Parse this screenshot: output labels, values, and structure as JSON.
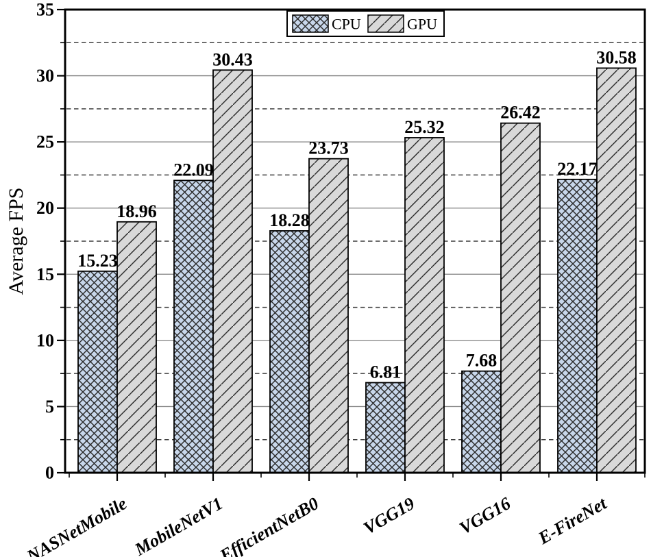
{
  "chart_data": {
    "type": "bar",
    "title": "",
    "categories": [
      "NASNetMobile",
      "MobileNetV1",
      "EfficientNetB0",
      "VGG19",
      "VGG16",
      "E-FireNet"
    ],
    "series": [
      {
        "name": "CPU",
        "values": [
          15.23,
          22.09,
          18.28,
          6.81,
          7.68,
          22.17
        ],
        "fill": "#c8d7eb",
        "hatch": "crosshatch"
      },
      {
        "name": "GPU",
        "values": [
          18.96,
          30.43,
          23.73,
          25.32,
          26.42,
          30.58
        ],
        "fill": "#d9d9d9",
        "hatch": "diagonal"
      }
    ],
    "xlabel": "",
    "ylabel": "Average FPS",
    "ylim": [
      0,
      35
    ],
    "ytick_step": 5,
    "yminor_step": 2.5,
    "yticks": [
      "0",
      "5",
      "10",
      "15",
      "20",
      "25",
      "30",
      "35"
    ],
    "bar_labels": true,
    "grid": {
      "major_style": "solid",
      "minor_style": "dashed",
      "major_on": true,
      "minor_on": true
    },
    "legend": {
      "position": "top-center",
      "entries": [
        "CPU",
        "GPU"
      ]
    },
    "colors": {
      "cpu_fill": "#c8d7eb",
      "gpu_fill": "#d9d9d9",
      "hatch_line": "#2d2d2d",
      "bar_border": "#000000",
      "major_grid": "#7f7f7f",
      "minor_grid": "#3f3f3f",
      "axis": "#000000",
      "text": "#000000",
      "legend_bg": "#ffffff",
      "background": "#ffffff"
    }
  }
}
